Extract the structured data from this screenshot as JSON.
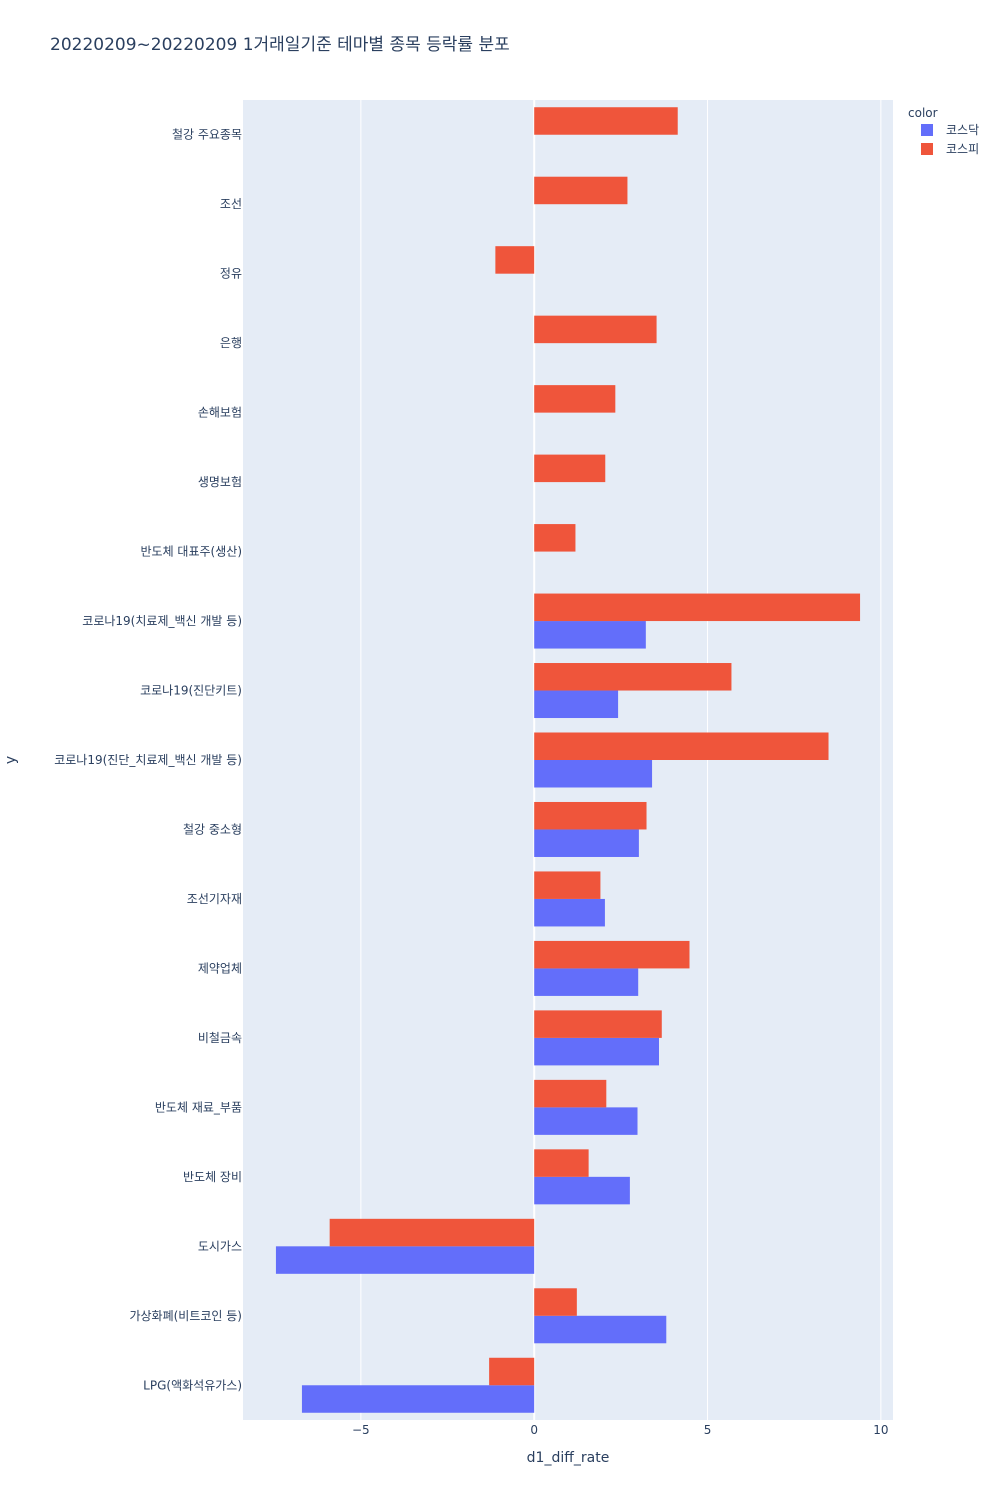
{
  "chart_data": {
    "type": "bar",
    "orientation": "horizontal",
    "barmode": "group",
    "title": "20220209~20220209 1거래일기준 테마별 종목 등락률 분포",
    "xlabel": "d1_diff_rate",
    "ylabel": "y",
    "xlim": [
      -8.4,
      10.35
    ],
    "xticks": [
      {
        "value": -5,
        "label": "−5"
      },
      {
        "value": 0,
        "label": "0"
      },
      {
        "value": 5,
        "label": "5"
      },
      {
        "value": 10,
        "label": "10"
      }
    ],
    "grid": true,
    "legend": {
      "title": "color",
      "position": "top-right"
    },
    "categories": [
      "철강 주요종목",
      "조선",
      "정유",
      "은행",
      "손해보험",
      "생명보험",
      "반도체 대표주(생산)",
      "코로나19(치료제_백신 개발 등)",
      "코로나19(진단키트)",
      "코로나19(진단_치료제_백신 개발 등)",
      "철강 중소형",
      "조선기자재",
      "제약업체",
      "비철금속",
      "반도체 재료_부품",
      "반도체 장비",
      "도시가스",
      "가상화폐(비트코인 등)",
      "LPG(액화석유가스)"
    ],
    "series": [
      {
        "name": "코스닥",
        "color": "#636efa",
        "values": [
          null,
          null,
          null,
          null,
          null,
          null,
          null,
          3.22,
          2.42,
          3.4,
          3.02,
          2.04,
          3.0,
          3.6,
          2.98,
          2.76,
          -7.45,
          3.81,
          -6.7
        ]
      },
      {
        "name": "코스피",
        "color": "#ef553b",
        "values": [
          4.14,
          2.69,
          -1.12,
          3.53,
          2.34,
          2.05,
          1.19,
          9.4,
          5.69,
          8.49,
          3.24,
          1.91,
          4.48,
          3.68,
          2.08,
          1.57,
          -5.9,
          1.23,
          -1.3
        ]
      }
    ]
  }
}
